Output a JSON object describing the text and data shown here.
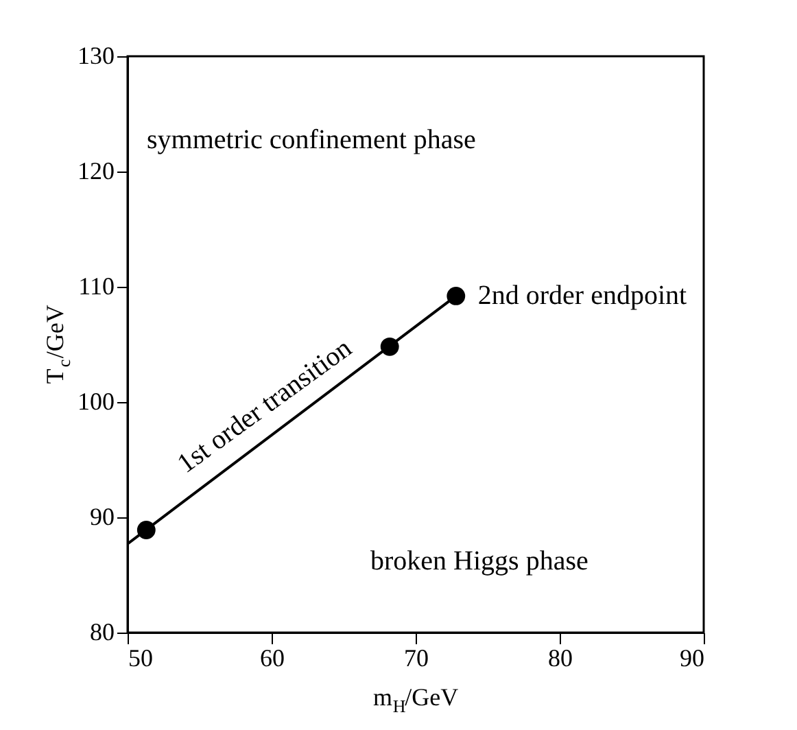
{
  "chart_data": {
    "type": "scatter",
    "xlabel": "m$_{H}$/GeV",
    "ylabel": "T$_{c}$/GeV",
    "xlim": [
      50,
      90
    ],
    "ylim": [
      80,
      130
    ],
    "xticks": [
      50,
      60,
      70,
      80,
      90
    ],
    "yticks": [
      80,
      90,
      100,
      110,
      120,
      130
    ],
    "grid": false,
    "series": [
      {
        "type": "line",
        "color": "#000000",
        "x": [
          50,
          72.8
        ],
        "values": [
          87.7,
          109.2
        ],
        "marker": "none",
        "line_style": "solid"
      },
      {
        "color": "#000000",
        "x": [
          51.3,
          68.2,
          72.8
        ],
        "values": [
          88.9,
          104.8,
          109.2
        ],
        "marker": "circle"
      }
    ],
    "annotations": [
      "symmetric confinement phase",
      "1st order transition",
      "broken Higgs phase",
      {
        "text": "2nd order endpoint",
        "x": 72.8,
        "y": 109.2
      }
    ]
  }
}
